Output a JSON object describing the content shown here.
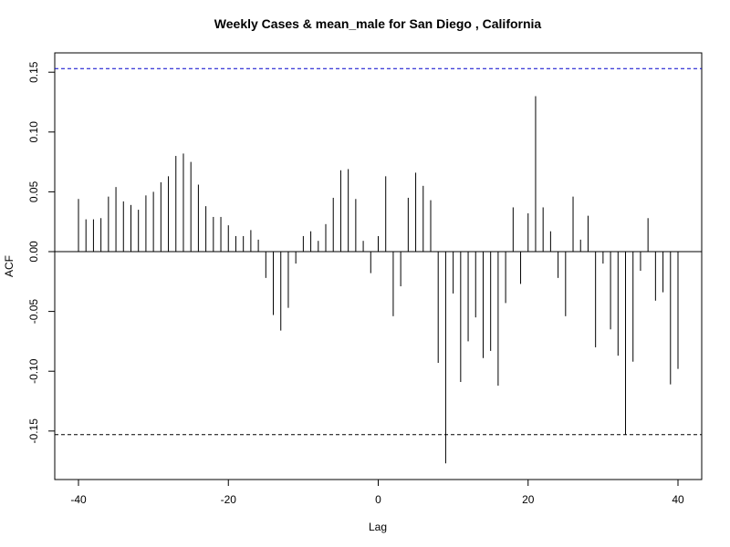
{
  "chart_data": {
    "type": "bar",
    "title": "Weekly Cases & mean_male for San Diego , California",
    "xlabel": "Lag",
    "ylabel": "ACF",
    "xlim": [
      -40,
      40
    ],
    "ylim": [
      -0.18,
      0.16
    ],
    "xticks": [
      "-40",
      "-20",
      "0",
      "20",
      "40"
    ],
    "yticks": [
      "-0.15",
      "-0.10",
      "-0.05",
      "0.00",
      "0.05",
      "0.10",
      "0.15"
    ],
    "confidence_band": [
      0.153,
      -0.153
    ],
    "band_colors": {
      "upper": "#0000cc",
      "lower": "#000000"
    },
    "lags": [
      -40,
      -39,
      -38,
      -37,
      -36,
      -35,
      -34,
      -33,
      -32,
      -31,
      -30,
      -29,
      -28,
      -27,
      -26,
      -25,
      -24,
      -23,
      -22,
      -21,
      -20,
      -19,
      -18,
      -17,
      -16,
      -15,
      -14,
      -13,
      -12,
      -11,
      -10,
      -9,
      -8,
      -7,
      -6,
      -5,
      -4,
      -3,
      -2,
      -1,
      0,
      1,
      2,
      3,
      4,
      5,
      6,
      7,
      8,
      9,
      10,
      11,
      12,
      13,
      14,
      15,
      16,
      17,
      18,
      19,
      20,
      21,
      22,
      23,
      24,
      25,
      26,
      27,
      28,
      29,
      30,
      31,
      32,
      33,
      34,
      35,
      36,
      37,
      38,
      39,
      40
    ],
    "values": [
      0.044,
      0.027,
      0.027,
      0.028,
      0.046,
      0.054,
      0.042,
      0.039,
      0.035,
      0.047,
      0.05,
      0.058,
      0.063,
      0.08,
      0.082,
      0.075,
      0.056,
      0.038,
      0.029,
      0.029,
      0.022,
      0.013,
      0.013,
      0.018,
      0.01,
      -0.022,
      -0.053,
      -0.066,
      -0.047,
      -0.01,
      0.013,
      0.017,
      0.009,
      0.023,
      0.045,
      0.068,
      0.069,
      0.044,
      0.009,
      -0.018,
      0.013,
      0.063,
      -0.054,
      -0.029,
      0.045,
      0.066,
      0.055,
      0.043,
      -0.093,
      -0.177,
      -0.035,
      -0.109,
      -0.075,
      -0.055,
      -0.089,
      -0.083,
      -0.112,
      -0.043,
      0.037,
      -0.027,
      0.032,
      0.13,
      0.037,
      0.017,
      -0.022,
      -0.054,
      0.046,
      0.01,
      0.03,
      -0.08,
      -0.01,
      -0.065,
      -0.087,
      -0.153,
      -0.092,
      -0.016,
      0.028,
      -0.041,
      -0.034,
      -0.111,
      -0.098
    ]
  }
}
